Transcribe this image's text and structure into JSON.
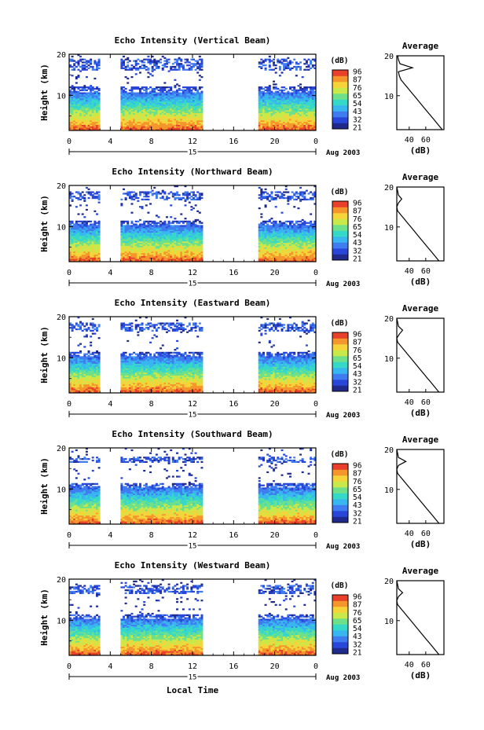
{
  "chart_data": [
    {
      "type": "heatmap",
      "title": "Echo Intensity (Vertical Beam)",
      "ylabel": "Height (km)",
      "x_ticks": [
        "0",
        "4",
        "8",
        "12",
        "16",
        "20",
        "0"
      ],
      "y_ticks": [
        "20",
        "10"
      ],
      "xlim": [
        0,
        24
      ],
      "ylim": [
        1.5,
        20
      ],
      "date_marker": "15",
      "date_label": "Aug 2003",
      "data_gaps_hours": [
        [
          3,
          5
        ],
        [
          13,
          18.5
        ]
      ],
      "layer_top_km": 12,
      "tropopause_band_km": [
        16,
        19
      ],
      "colorbar": {
        "unit": "(dB)",
        "ticks": [
          "96",
          "87",
          "76",
          "65",
          "54",
          "43",
          "32",
          "21"
        ]
      },
      "average_profile": {
        "title": "Average",
        "xlabel": "(dB)",
        "x_ticks": [
          "40",
          "60"
        ],
        "y_ticks": [
          "20",
          "10"
        ],
        "height_km": [
          1.5,
          2,
          3,
          4,
          5,
          6,
          7,
          8,
          9,
          10,
          11,
          12,
          13,
          14,
          15,
          16,
          17,
          18,
          19,
          20
        ],
        "db": [
          80,
          78,
          74,
          70,
          66,
          62,
          58,
          54,
          50,
          46,
          42,
          38,
          34,
          30,
          28,
          27,
          44,
          29,
          27,
          26
        ]
      }
    },
    {
      "type": "heatmap",
      "title": "Echo Intensity (Northward Beam)",
      "ylabel": "Height (km)",
      "x_ticks": [
        "0",
        "4",
        "8",
        "12",
        "16",
        "20",
        "0"
      ],
      "y_ticks": [
        "20",
        "10"
      ],
      "xlim": [
        0,
        24
      ],
      "ylim": [
        1.5,
        20
      ],
      "date_marker": "15",
      "date_label": "Aug 2003",
      "data_gaps_hours": [
        [
          3,
          5
        ],
        [
          13,
          18.5
        ]
      ],
      "layer_top_km": 11.5,
      "tropopause_band_km": [
        16.5,
        18.5
      ],
      "colorbar": {
        "unit": "(dB)",
        "ticks": [
          "96",
          "87",
          "76",
          "65",
          "54",
          "43",
          "32",
          "21"
        ]
      },
      "average_profile": {
        "title": "Average",
        "xlabel": "(dB)",
        "x_ticks": [
          "40",
          "60"
        ],
        "y_ticks": [
          "20",
          "10"
        ],
        "height_km": [
          1.5,
          2,
          3,
          4,
          5,
          6,
          7,
          8,
          9,
          10,
          11,
          12,
          13,
          14,
          15,
          16,
          17,
          18,
          19,
          20
        ],
        "db": [
          76,
          74,
          70,
          66,
          62,
          58,
          54,
          50,
          46,
          42,
          38,
          34,
          30,
          26,
          25,
          27,
          31,
          27,
          26,
          25
        ]
      }
    },
    {
      "type": "heatmap",
      "title": "Echo Intensity (Eastward Beam)",
      "ylabel": "Height (km)",
      "x_ticks": [
        "0",
        "4",
        "8",
        "12",
        "16",
        "20",
        "0"
      ],
      "y_ticks": [
        "20",
        "10"
      ],
      "xlim": [
        0,
        24
      ],
      "ylim": [
        1.5,
        20
      ],
      "date_marker": "15",
      "date_label": "Aug 2003",
      "data_gaps_hours": [
        [
          3,
          5
        ],
        [
          13,
          18.5
        ]
      ],
      "layer_top_km": 11.5,
      "tropopause_band_km": [
        16.5,
        18.5
      ],
      "colorbar": {
        "unit": "(dB)",
        "ticks": [
          "96",
          "87",
          "76",
          "65",
          "54",
          "43",
          "32",
          "21"
        ]
      },
      "average_profile": {
        "title": "Average",
        "xlabel": "(dB)",
        "x_ticks": [
          "40",
          "60"
        ],
        "y_ticks": [
          "20",
          "10"
        ],
        "height_km": [
          1.5,
          2,
          3,
          4,
          5,
          6,
          7,
          8,
          9,
          10,
          11,
          12,
          13,
          14,
          15,
          16,
          17,
          18,
          19,
          20
        ],
        "db": [
          76,
          74,
          70,
          66,
          62,
          58,
          54,
          50,
          46,
          42,
          38,
          34,
          30,
          26,
          25,
          28,
          32,
          27,
          26,
          25
        ]
      }
    },
    {
      "type": "heatmap",
      "title": "Echo Intensity (Southward Beam)",
      "ylabel": "Height (km)",
      "x_ticks": [
        "0",
        "4",
        "8",
        "12",
        "16",
        "20",
        "0"
      ],
      "y_ticks": [
        "20",
        "10"
      ],
      "xlim": [
        0,
        24
      ],
      "ylim": [
        1.5,
        20
      ],
      "date_marker": "15",
      "date_label": "Aug 2003",
      "data_gaps_hours": [
        [
          3,
          5
        ],
        [
          13,
          18.5
        ]
      ],
      "layer_top_km": 11.5,
      "tropopause_band_km": [
        16.5,
        18
      ],
      "colorbar": {
        "unit": "(dB)",
        "ticks": [
          "96",
          "87",
          "76",
          "65",
          "54",
          "43",
          "32",
          "21"
        ]
      },
      "average_profile": {
        "title": "Average",
        "xlabel": "(dB)",
        "x_ticks": [
          "40",
          "60"
        ],
        "y_ticks": [
          "20",
          "10"
        ],
        "height_km": [
          1.5,
          2,
          3,
          4,
          5,
          6,
          7,
          8,
          9,
          10,
          11,
          12,
          13,
          14,
          15,
          16,
          17,
          18,
          19,
          20
        ],
        "db": [
          76,
          74,
          70,
          66,
          62,
          58,
          54,
          50,
          46,
          42,
          38,
          34,
          30,
          26,
          25,
          27,
          36,
          27,
          26,
          25
        ]
      }
    },
    {
      "type": "heatmap",
      "title": "Echo Intensity (Westward Beam)",
      "ylabel": "Height (km)",
      "xlabel": "Local Time",
      "x_ticks": [
        "0",
        "4",
        "8",
        "12",
        "16",
        "20",
        "0"
      ],
      "y_ticks": [
        "20",
        "10"
      ],
      "xlim": [
        0,
        24
      ],
      "ylim": [
        1.5,
        20
      ],
      "date_marker": "15",
      "date_label": "Aug 2003",
      "data_gaps_hours": [
        [
          3,
          5
        ],
        [
          13,
          18.5
        ]
      ],
      "layer_top_km": 11.5,
      "tropopause_band_km": [
        16.5,
        18.5
      ],
      "colorbar": {
        "unit": "(dB)",
        "ticks": [
          "96",
          "87",
          "76",
          "65",
          "54",
          "43",
          "32",
          "21"
        ]
      },
      "average_profile": {
        "title": "Average",
        "xlabel": "(dB)",
        "x_ticks": [
          "40",
          "60"
        ],
        "y_ticks": [
          "20",
          "10"
        ],
        "height_km": [
          1.5,
          2,
          3,
          4,
          5,
          6,
          7,
          8,
          9,
          10,
          11,
          12,
          13,
          14,
          15,
          16,
          17,
          18,
          19,
          20
        ],
        "db": [
          76,
          74,
          70,
          66,
          62,
          58,
          54,
          50,
          46,
          42,
          38,
          34,
          30,
          26,
          25,
          27,
          32,
          27,
          26,
          25
        ]
      }
    }
  ],
  "colormap": [
    "#1f2a8c",
    "#2846d8",
    "#3f7cf0",
    "#38b6f0",
    "#36d9c8",
    "#6fe08a",
    "#c9e84a",
    "#f5d43a",
    "#f5962c",
    "#e8402a"
  ]
}
